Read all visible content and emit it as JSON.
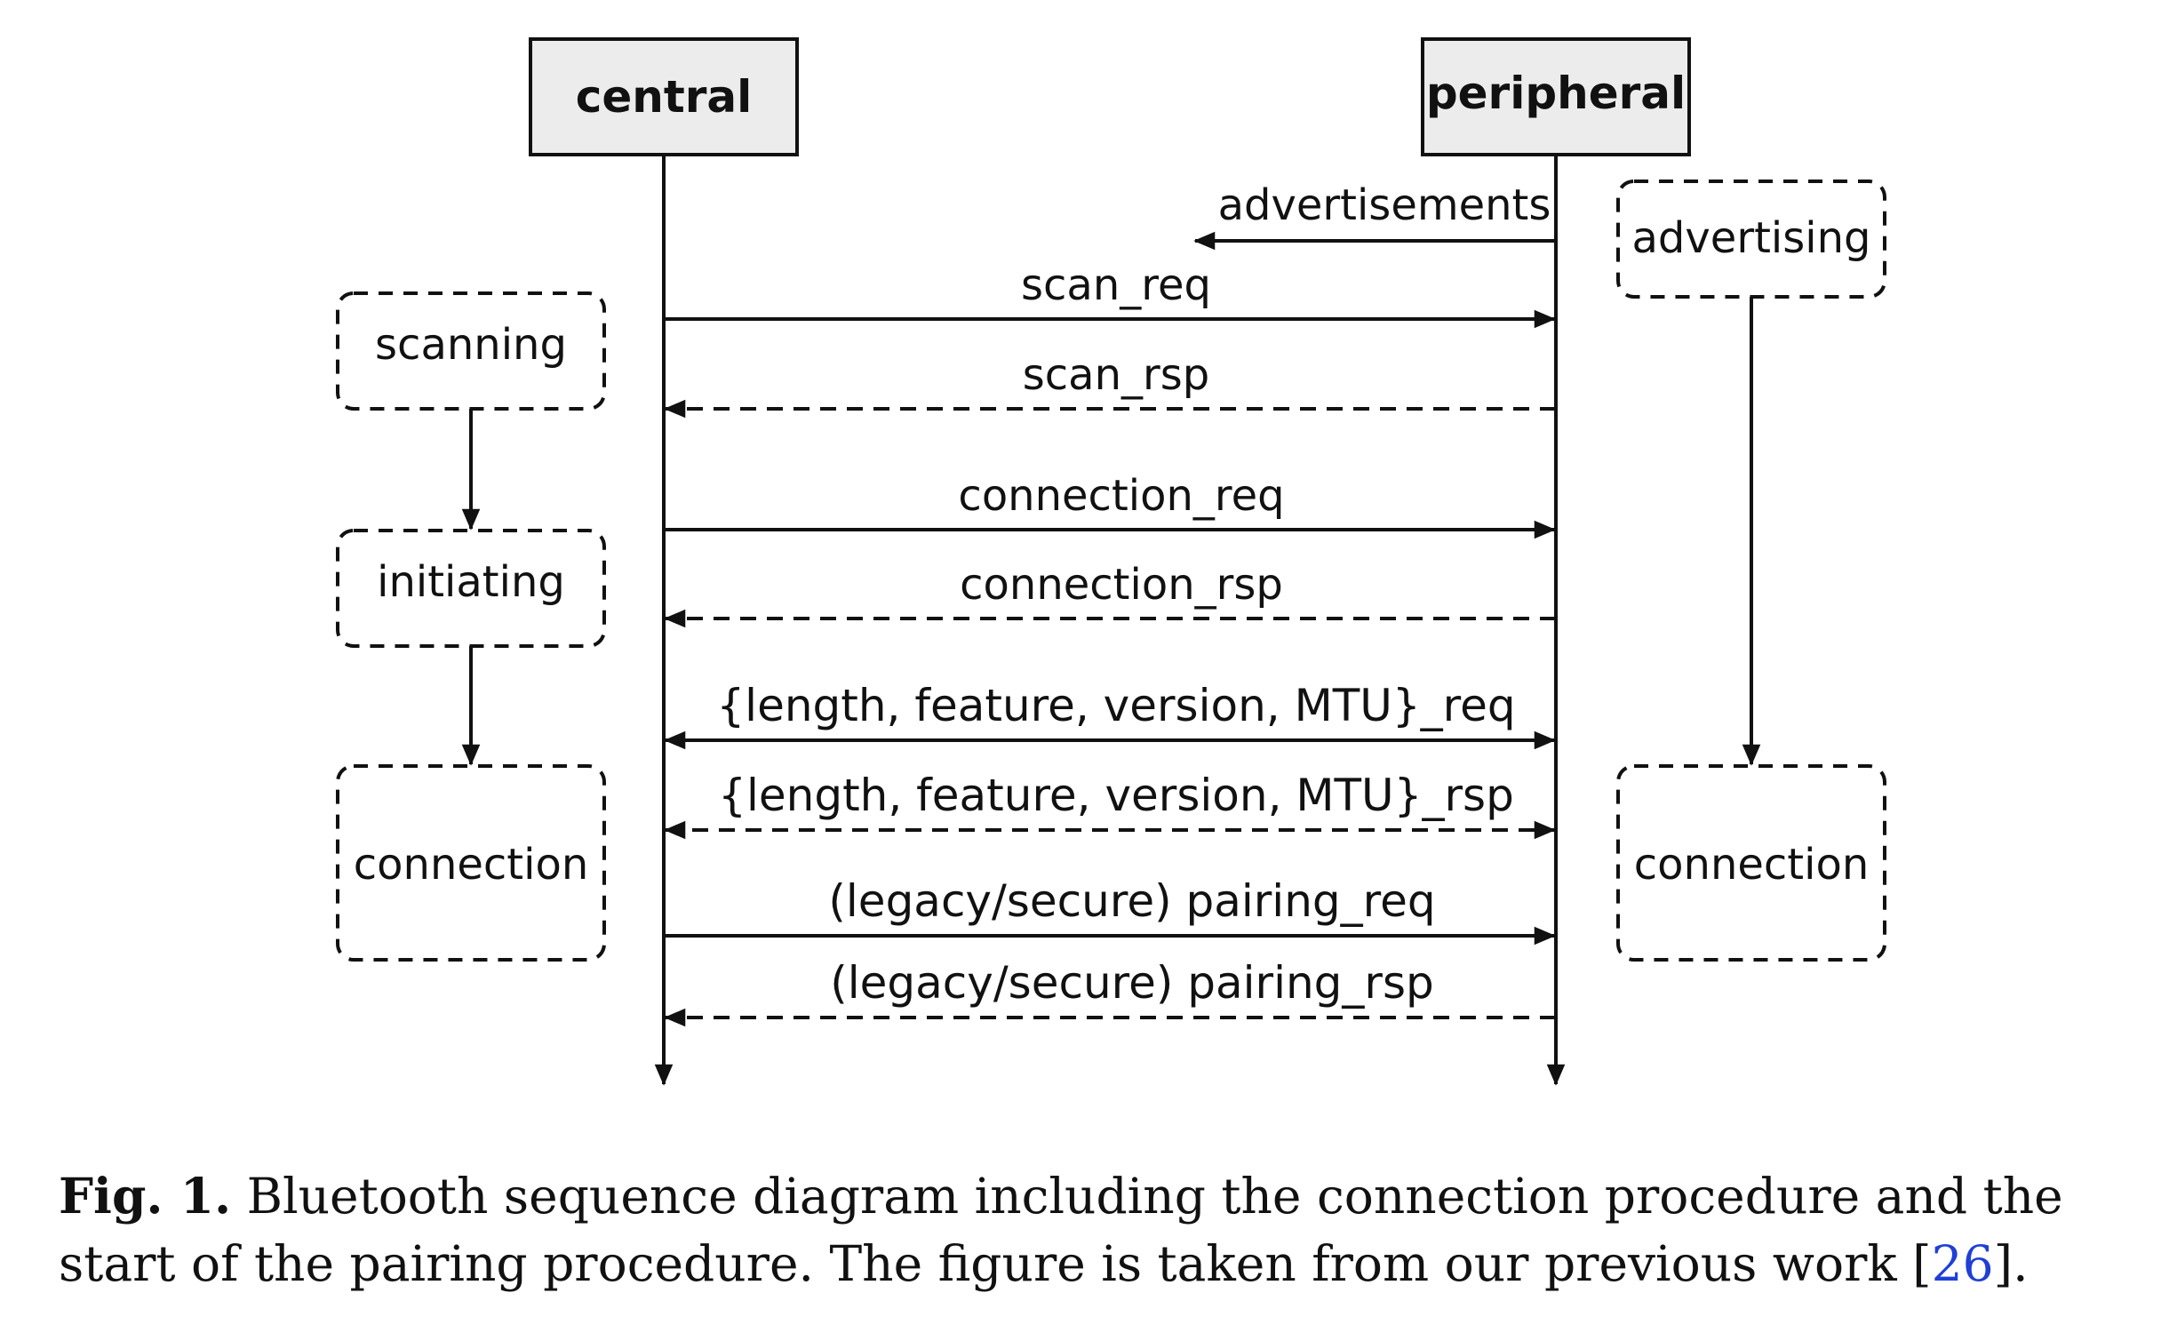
{
  "actors": {
    "central": "central",
    "peripheral": "peripheral"
  },
  "states": {
    "scanning": "scanning",
    "initiating": "initiating",
    "central_connection": "connection",
    "advertising": "advertising",
    "peripheral_connection": "connection"
  },
  "messages": {
    "advertisements": "advertisements",
    "scan_req": "scan_req",
    "scan_rsp": "scan_rsp",
    "connection_req": "connection_req",
    "connection_rsp": "connection_rsp",
    "lfvm_req": "{length, feature, version, MTU}_req",
    "lfvm_rsp": "{length, feature, version, MTU}_rsp",
    "pairing_req": "(legacy/secure) pairing_req",
    "pairing_rsp": "(legacy/secure) pairing_rsp"
  },
  "caption": {
    "label": "Fig. 1.",
    "text": "Bluetooth sequence diagram including the connection procedure and the start of the pairing procedure. The figure is taken from our previous work [",
    "ref": "26",
    "end": "]."
  }
}
